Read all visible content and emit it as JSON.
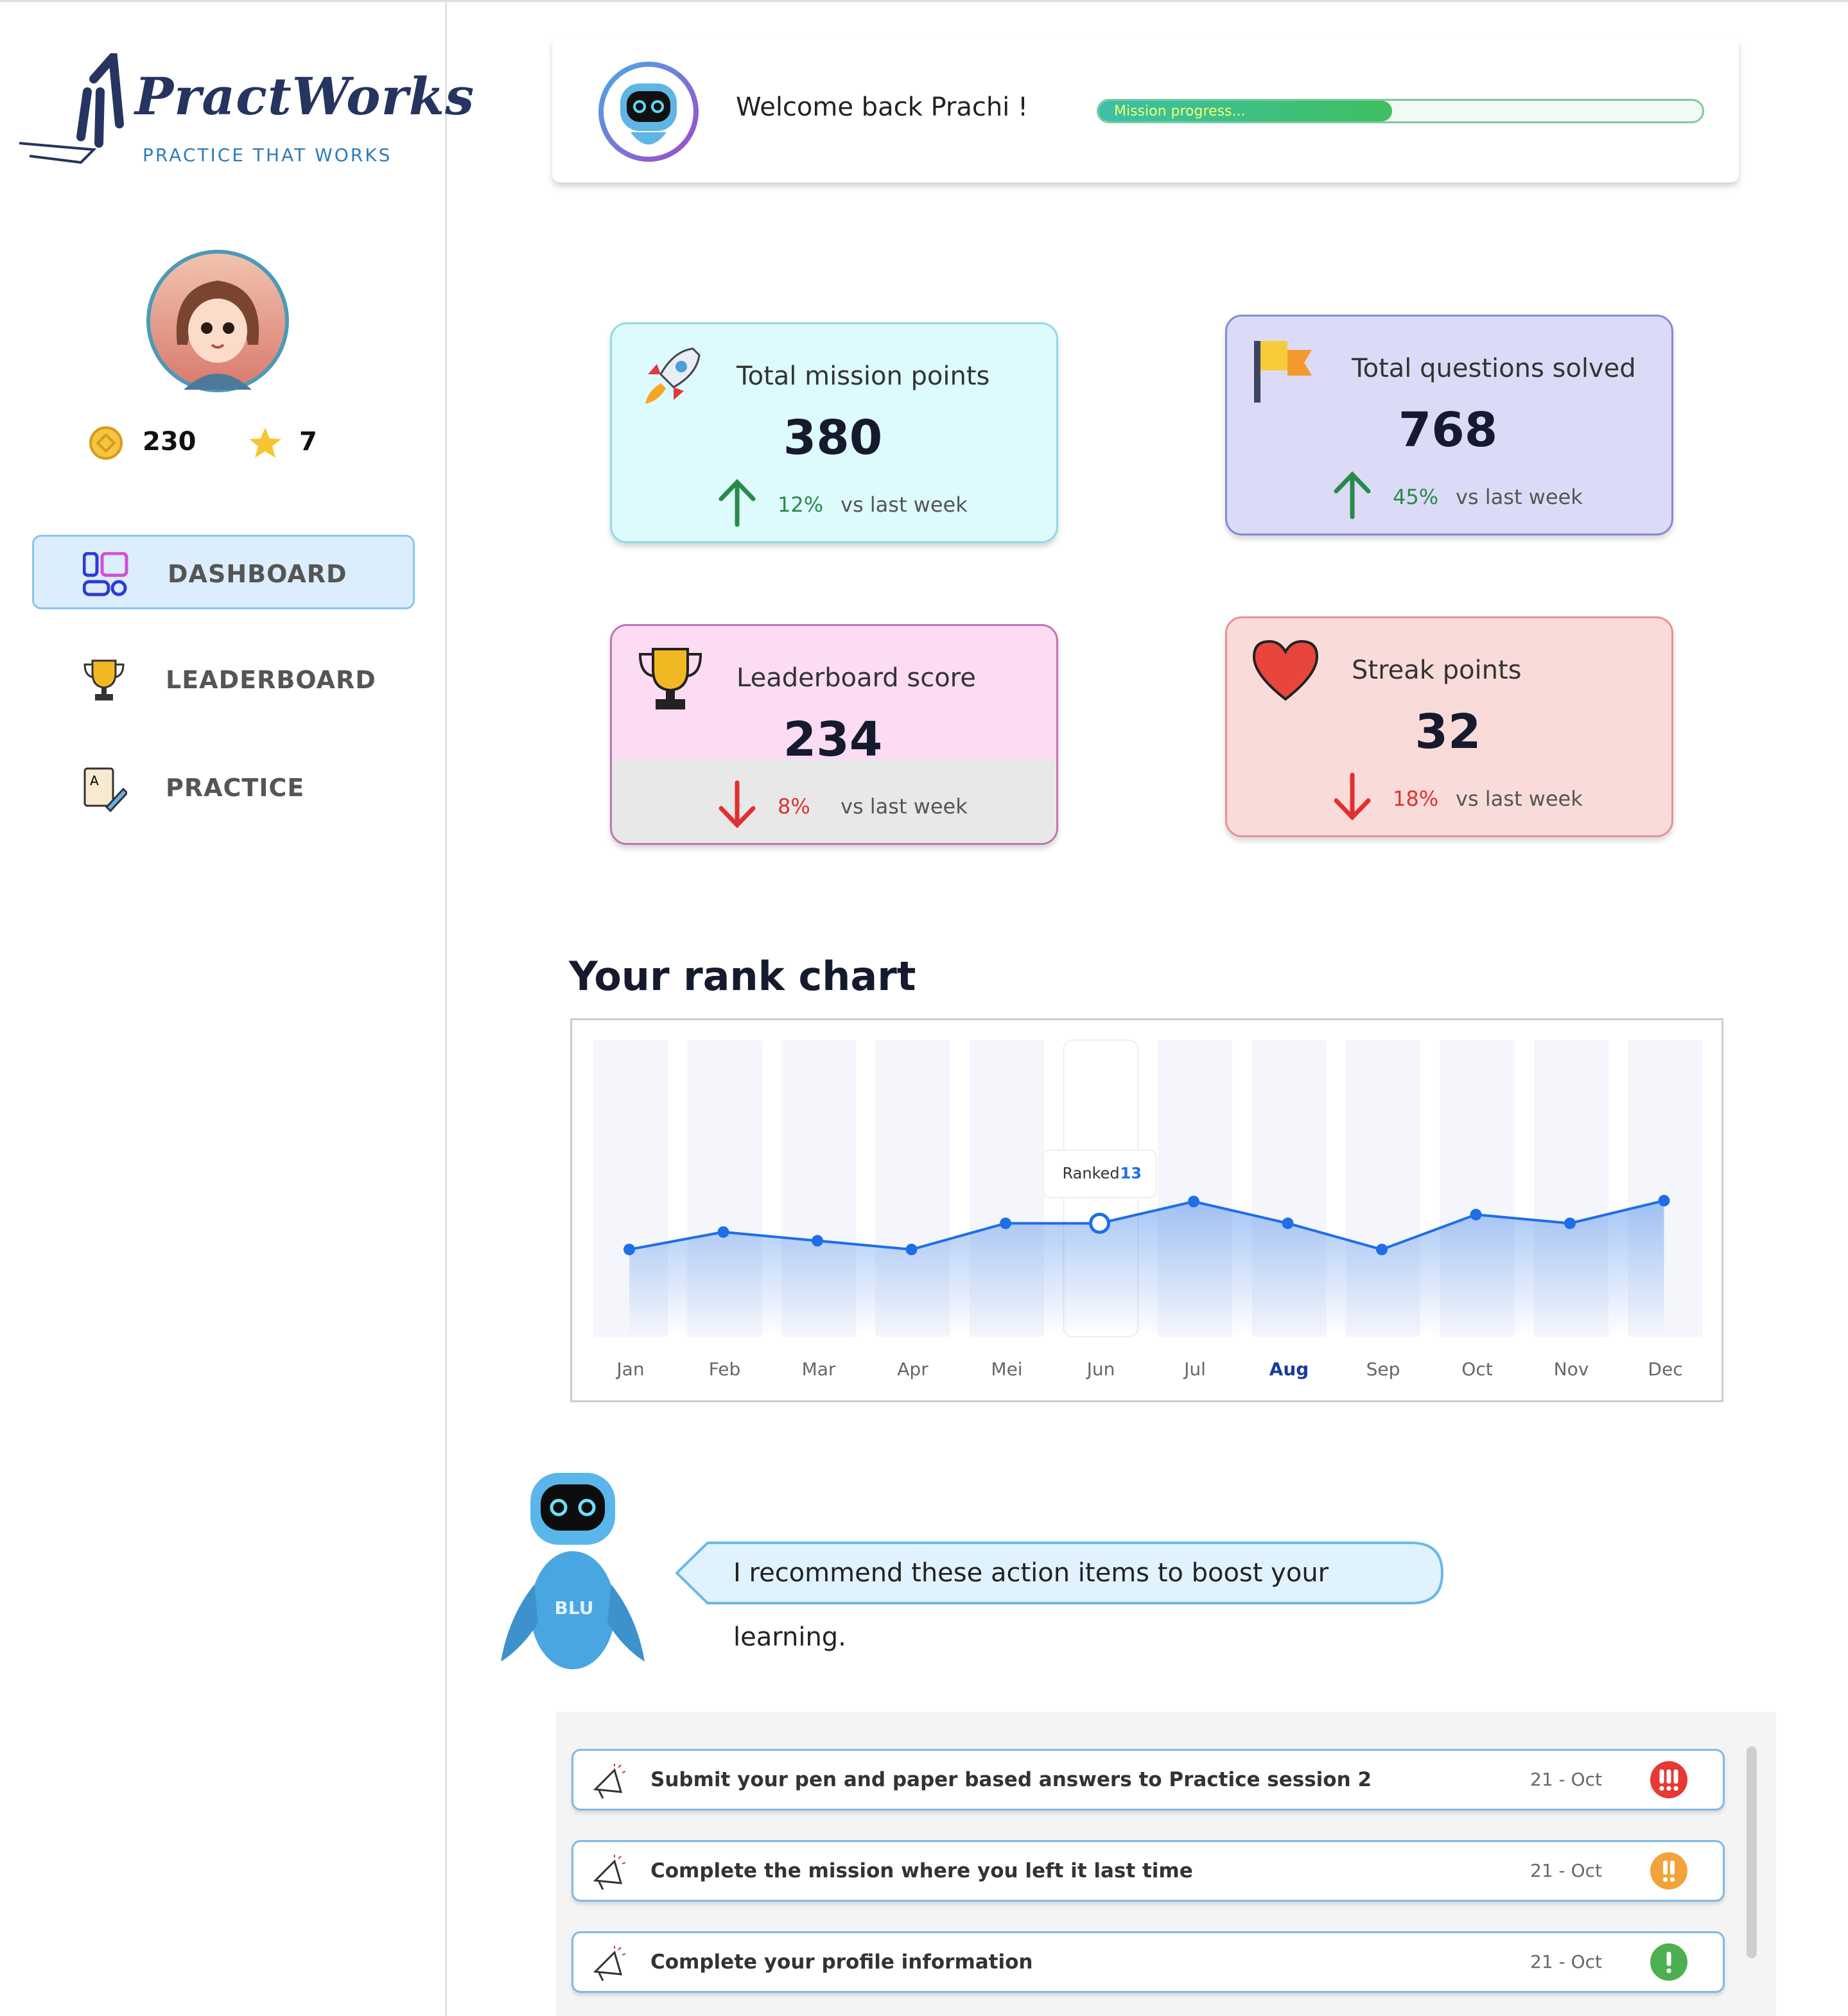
{
  "brand": {
    "name": "PractWorks",
    "tagline": "PRACTICE THAT WORKS"
  },
  "profile": {
    "coins": 230,
    "stars": 7
  },
  "nav": [
    {
      "label": "DASHBOARD",
      "active": true
    },
    {
      "label": "LEADERBOARD",
      "active": false
    },
    {
      "label": "PRACTICE",
      "active": false
    }
  ],
  "header": {
    "greeting": "Welcome back Prachi !",
    "progress_label": "Mission progress...",
    "progress": 48.6
  },
  "stats": [
    {
      "title": "Total mission points",
      "value": 380,
      "change": "12%",
      "direction": "up",
      "note": "vs last week"
    },
    {
      "title": "Total questions solved",
      "value": 768,
      "change": "45%",
      "direction": "up",
      "note": "vs last week"
    },
    {
      "title": "Leaderboard score",
      "value": 234,
      "change": "8%",
      "direction": "down",
      "note": "vs last week"
    },
    {
      "title": "Streak points",
      "value": 32,
      "change": "18%",
      "direction": "down",
      "note": "vs last week"
    }
  ],
  "chart_data": {
    "type": "line",
    "title": "Your rank chart",
    "categories": [
      "Jan",
      "Feb",
      "Mar",
      "Apr",
      "Mei",
      "Jun",
      "Jul",
      "Aug",
      "Sep",
      "Oct",
      "Nov",
      "Dec"
    ],
    "values": [
      10,
      12,
      11,
      10,
      13,
      13,
      15.5,
      13,
      10,
      14,
      13,
      15.6
    ],
    "color": "#1e6ee8",
    "ylim": [
      0,
      34
    ],
    "tooltip_label": "Ranked",
    "tooltip_index": 5,
    "current_index": 7
  },
  "assistant": {
    "name": "BLU",
    "message": "I recommend these action items to boost your learning."
  },
  "actions": [
    {
      "text": "Submit your pen and paper based answers to Practice session 2",
      "date": "21 - Oct",
      "priority": 3,
      "color": "#e53935"
    },
    {
      "text": "Complete the mission where you left it last time",
      "date": "21 - Oct",
      "priority": 2,
      "color": "#f2a33a"
    },
    {
      "text": "Complete your profile information",
      "date": "21 - Oct",
      "priority": 1,
      "color": "#4caf50"
    }
  ]
}
